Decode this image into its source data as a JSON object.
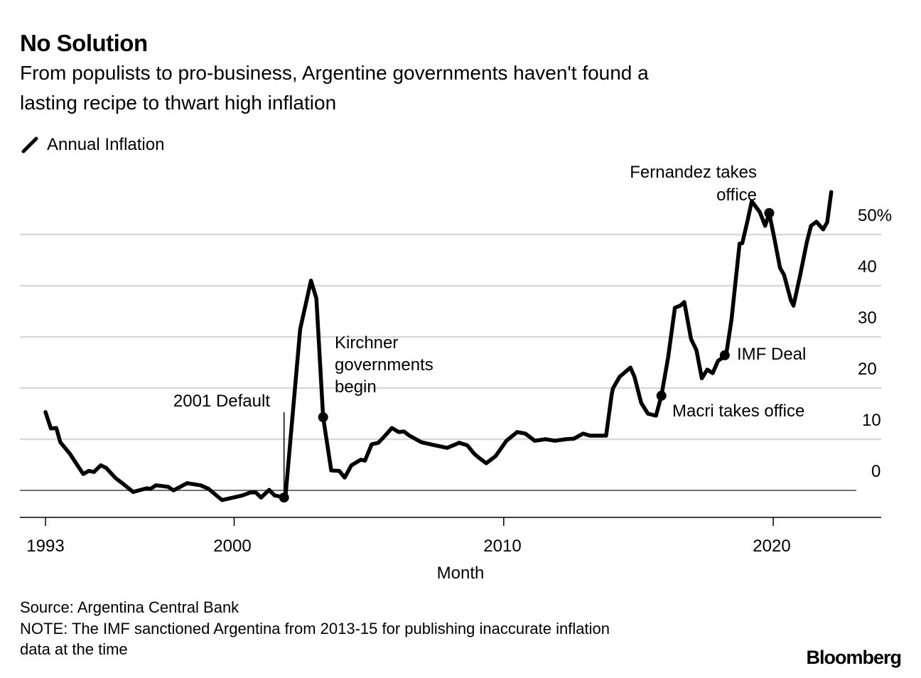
{
  "title": "No Solution",
  "subtitle": [
    "From populists to pro-business, Argentine governments haven't found a",
    "lasting recipe to thwart high inflation"
  ],
  "legend": {
    "label": "Annual Inflation",
    "icon": "diagonal-line-icon"
  },
  "footer": {
    "source": "Source: Argentina Central Bank",
    "note": [
      "NOTE: The IMF sanctioned Argentina from 2013-15 for publishing inaccurate inflation",
      "data at the time"
    ],
    "logo": "Bloomberg"
  },
  "chart_data": {
    "type": "line",
    "xlabel": "Month",
    "ylabel": "",
    "x_ticks": [
      "1993",
      "2000",
      "2010",
      "2020"
    ],
    "y_ticks": [
      "0",
      "10",
      "20",
      "30",
      "40",
      "50%"
    ],
    "y_tick_values": [
      0,
      10,
      20,
      30,
      40,
      50
    ],
    "ylim": [
      -5,
      58
    ],
    "grid": true,
    "legend_position": "top-left",
    "line_color": "#000000",
    "series": [
      {
        "name": "Annual Inflation",
        "x": [
          1993.0,
          1993.2,
          1993.4,
          1993.55,
          1993.9,
          1994.4,
          1994.6,
          1994.8,
          1995.05,
          1995.25,
          1995.6,
          1995.85,
          1996.25,
          1996.75,
          1996.9,
          1997.1,
          1997.55,
          1997.75,
          1998.25,
          1998.75,
          1999.05,
          1999.55,
          2000.3,
          2000.6,
          2000.8,
          2001.0,
          2001.3,
          2001.5,
          2001.9,
          2002.1,
          2002.45,
          2002.85,
          2003.05,
          2003.3,
          2003.6,
          2003.9,
          2004.1,
          2004.35,
          2004.7,
          2004.85,
          2005.1,
          2005.35,
          2005.6,
          2005.85,
          2006.1,
          2006.3,
          2006.5,
          2006.95,
          2007.45,
          2007.9,
          2008.35,
          2008.65,
          2008.9,
          2009.05,
          2009.35,
          2009.7,
          2010.1,
          2010.5,
          2010.8,
          2011.15,
          2011.55,
          2011.9,
          2012.3,
          2012.6,
          2012.95,
          2013.2,
          2013.45,
          2013.8,
          2014.0,
          2014.05,
          2014.3,
          2014.7,
          2014.85,
          2015.1,
          2015.35,
          2015.65,
          2015.85,
          2016.1,
          2016.35,
          2016.55,
          2016.7,
          2016.95,
          2017.15,
          2017.35,
          2017.55,
          2017.75,
          2017.95,
          2018.25,
          2018.45,
          2018.75,
          2018.85,
          2019.05,
          2019.2,
          2019.5,
          2019.7,
          2019.85,
          2020.05,
          2020.25,
          2020.4,
          2020.65,
          2020.75,
          2021.0,
          2021.25,
          2021.4,
          2021.6,
          2021.85,
          2022.0,
          2022.15
        ],
        "values": [
          15.3,
          12.1,
          12.2,
          9.4,
          7.2,
          3.2,
          3.8,
          3.6,
          4.9,
          4.4,
          2.4,
          1.4,
          -0.3,
          0.4,
          0.3,
          1.0,
          0.7,
          0.0,
          1.4,
          1.0,
          0.3,
          -1.9,
          -1.0,
          -0.4,
          -0.4,
          -1.4,
          0.1,
          -1.0,
          -1.4,
          10.7,
          31.5,
          41.0,
          37.5,
          14.3,
          3.9,
          3.8,
          2.5,
          4.9,
          6.0,
          5.8,
          9.0,
          9.3,
          10.7,
          12.2,
          11.4,
          11.5,
          10.7,
          9.4,
          8.8,
          8.3,
          9.3,
          8.8,
          7.2,
          6.5,
          5.3,
          6.7,
          9.7,
          11.4,
          11.1,
          9.7,
          10.0,
          9.7,
          10.0,
          10.1,
          11.1,
          10.7,
          10.7,
          10.7,
          18.5,
          19.9,
          22.2,
          24.0,
          22.2,
          17.1,
          15.0,
          14.6,
          18.5,
          26.0,
          35.7,
          36.1,
          36.8,
          29.6,
          27.4,
          21.9,
          23.6,
          22.9,
          25.3,
          26.4,
          33.3,
          48.2,
          48.3,
          52.8,
          56.5,
          54.4,
          51.7,
          54.2,
          49.0,
          43.5,
          42.1,
          37.2,
          36.1,
          42.1,
          48.6,
          51.7,
          52.5,
          51.0,
          52.4,
          58.3
        ]
      }
    ],
    "annotations": [
      {
        "text": [
          "2001 Default"
        ],
        "x": 2001.85,
        "y": -1.4,
        "marker": "line"
      },
      {
        "text": [
          "Kirchner",
          "governments",
          "begin"
        ],
        "x": 2003.3,
        "y": 14.3,
        "marker": "dot"
      },
      {
        "text": [
          "Macri takes office"
        ],
        "x": 2015.85,
        "y": 18.5,
        "marker": "dot"
      },
      {
        "text": [
          "IMF Deal"
        ],
        "x": 2018.2,
        "y": 26.4,
        "marker": "dot"
      },
      {
        "text": [
          "Fernandez takes",
          "office"
        ],
        "x": 2019.85,
        "y": 54.2,
        "marker": "dot"
      }
    ]
  }
}
